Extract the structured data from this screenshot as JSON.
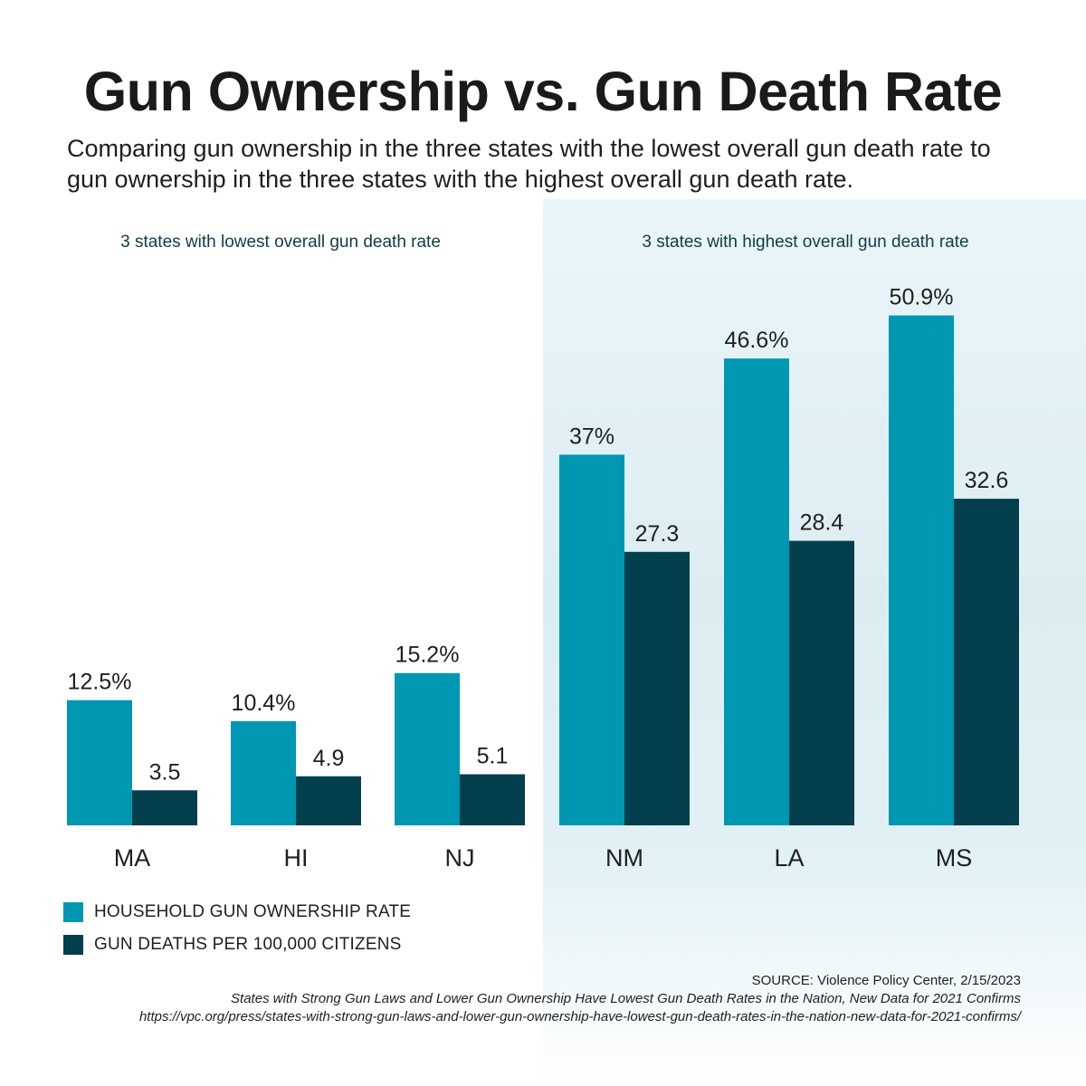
{
  "chart_data": {
    "type": "bar",
    "title": "Gun Ownership vs. Gun Death Rate",
    "subtitle": "Comparing gun ownership in the three states with the lowest overall gun death rate to gun ownership in the three states with the highest overall gun death rate.",
    "groups": [
      {
        "label": "3 states with lowest overall gun death rate",
        "categories": [
          "MA",
          "HI",
          "NJ"
        ]
      },
      {
        "label": "3 states with highest overall gun death rate",
        "categories": [
          "NM",
          "LA",
          "MS"
        ]
      }
    ],
    "categories": [
      "MA",
      "HI",
      "NJ",
      "NM",
      "LA",
      "MS"
    ],
    "series": [
      {
        "name": "HOUSEHOLD GUN OWNERSHIP RATE",
        "color": "#0097b2",
        "values": [
          12.5,
          10.4,
          15.2,
          37,
          46.6,
          50.9
        ],
        "labels": [
          "12.5%",
          "10.4%",
          "15.2%",
          "37%",
          "46.6%",
          "50.9%"
        ]
      },
      {
        "name": "GUN DEATHS PER 100,000 CITIZENS",
        "color": "#033f4d",
        "values": [
          3.5,
          4.9,
          5.1,
          27.3,
          28.4,
          32.6
        ],
        "labels": [
          "3.5",
          "4.9",
          "5.1",
          "27.3",
          "28.4",
          "32.6"
        ]
      }
    ],
    "ylim": [
      0,
      55
    ],
    "xlabel": "",
    "ylabel": ""
  },
  "source": {
    "line1": "SOURCE: Violence Policy Center, 2/15/2023",
    "line2": "States with Strong Gun Laws and Lower Gun Ownership Have Lowest Gun Death Rates in the Nation, New Data for 2021 Confirms",
    "line3": "https://vpc.org/press/states-with-strong-gun-laws-and-lower-gun-ownership-have-lowest-gun-death-rates-in-the-nation-new-data-for-2021-confirms/"
  }
}
